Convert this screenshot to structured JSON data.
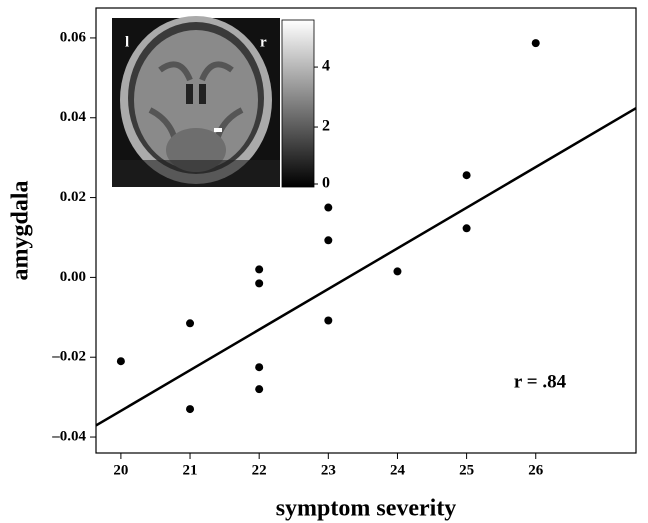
{
  "chart_data": {
    "type": "scatter",
    "x_label": "symptom severity",
    "y_label": "amygdala",
    "x": [
      20,
      21,
      21,
      22,
      22,
      22,
      22,
      23,
      23,
      23,
      24,
      25,
      25,
      26
    ],
    "values": [
      -0.021,
      -0.0115,
      -0.033,
      0.002,
      -0.0015,
      -0.0225,
      -0.028,
      0.0175,
      0.0093,
      -0.0108,
      0.0015,
      0.0256,
      0.0123,
      0.0587
    ],
    "color": "#000000",
    "fit_line": {
      "x": [
        19.64,
        27.45
      ],
      "y": [
        -0.0371,
        0.0424
      ]
    },
    "annotation": "r = .84",
    "xlim": [
      19.64,
      27.45
    ],
    "xticks": [
      20,
      21,
      22,
      23,
      24,
      25,
      26
    ],
    "ylim": [
      -0.044,
      0.0675
    ],
    "yticks": [
      {
        "value": -0.04,
        "label": "–0.04"
      },
      {
        "value": -0.02,
        "label": "–0.02"
      },
      {
        "value": 0,
        "label": "0.00"
      },
      0.02,
      0.04,
      0.06
    ],
    "inset": {
      "left_label": "l",
      "right_label": "r",
      "colorbar_lim": [
        0,
        5.57
      ],
      "colorbar_ticks": [
        0,
        2,
        4
      ]
    }
  }
}
